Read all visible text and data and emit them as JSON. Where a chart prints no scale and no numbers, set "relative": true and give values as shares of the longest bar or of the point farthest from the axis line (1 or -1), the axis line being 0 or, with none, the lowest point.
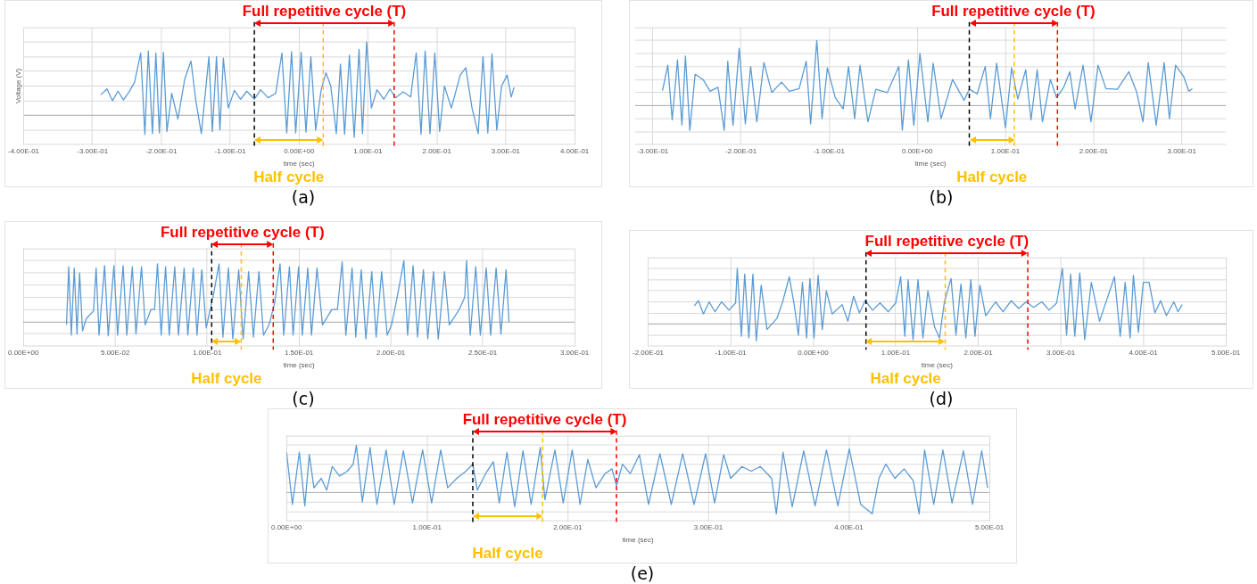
{
  "chart_data": [
    {
      "type": "line",
      "title": "(a)",
      "xlabel": "time (sec)",
      "ylabel": "Voltage (V)",
      "relative": true,
      "grid": true,
      "tick_labels": "x",
      "annotations": [
        "Full repetitive cycle (T)",
        "Half cycle"
      ],
      "ref_lines": [
        {
          "axis": "x",
          "value": -0.065,
          "color": "#000000",
          "line_style": "dashed"
        },
        {
          "axis": "x",
          "value": 0.035,
          "color": "#ffc000",
          "line_style": "dashed"
        },
        {
          "axis": "x",
          "value": 0.138,
          "color": "#ff0000",
          "line_style": "dashed"
        }
      ],
      "xlim": [
        -0.4,
        0.4
      ],
      "xticks": [
        {
          "value": -0.4,
          "label": "-4.00E-01"
        },
        {
          "value": -0.3,
          "label": "-3.00E-01"
        },
        {
          "value": -0.2,
          "label": "-2.00E-01"
        },
        {
          "value": -0.1,
          "label": "-1.00E-01"
        },
        {
          "value": 0,
          "label": "0.00E+00"
        },
        {
          "value": 0.1,
          "label": "1.00E-01"
        },
        {
          "value": 0.2,
          "label": "2.00E-01"
        },
        {
          "value": 0.3,
          "label": "3.00E-01"
        },
        {
          "value": 0.4,
          "label": "4.00E-01"
        }
      ],
      "x": [
        -0.288,
        -0.279,
        -0.271,
        -0.263,
        -0.255,
        -0.247,
        -0.239,
        -0.23,
        -0.224,
        -0.219,
        -0.213,
        -0.208,
        -0.203,
        -0.197,
        -0.192,
        -0.185,
        -0.176,
        -0.166,
        -0.157,
        -0.15,
        -0.142,
        -0.131,
        -0.126,
        -0.12,
        -0.115,
        -0.11,
        -0.103,
        -0.094,
        -0.085,
        -0.076,
        -0.065,
        -0.056,
        -0.045,
        -0.034,
        -0.025,
        -0.018,
        -0.011,
        -0.005,
        0.003,
        0.01,
        0.017,
        0.024,
        0.032,
        0.039,
        0.046,
        0.054,
        0.06,
        0.066,
        0.073,
        0.08,
        0.087,
        0.092,
        0.098,
        0.105,
        0.113,
        0.123,
        0.132,
        0.14,
        0.151,
        0.162,
        0.17,
        0.177,
        0.183,
        0.19,
        0.197,
        0.204,
        0.211,
        0.221,
        0.234,
        0.242,
        0.251,
        0.26,
        0.267,
        0.274,
        0.28,
        0.287,
        0.294,
        0.302,
        0.308,
        0.312
      ],
      "series": [
        {
          "color": "#5b9bd5",
          "values": [
            0.28,
            0.36,
            0.2,
            0.33,
            0.21,
            0.32,
            0.45,
            0.85,
            -0.26,
            0.88,
            -0.25,
            0.85,
            -0.24,
            0.86,
            -0.22,
            0.3,
            -0.05,
            0.5,
            0.74,
            0.2,
            -0.25,
            0.8,
            -0.22,
            0.8,
            -0.2,
            0.78,
            0.1,
            0.34,
            0.22,
            0.33,
            0.22,
            0.35,
            0.24,
            0.3,
            0.85,
            -0.24,
            0.87,
            -0.24,
            0.86,
            -0.23,
            0.8,
            -0.2,
            0.35,
            0.58,
            0.4,
            -0.25,
            0.7,
            -0.26,
            0.82,
            -0.3,
            0.9,
            -0.25,
            1.0,
            0.1,
            0.35,
            0.22,
            0.36,
            0.24,
            0.32,
            0.25,
            0.85,
            -0.26,
            0.88,
            -0.25,
            0.85,
            -0.22,
            0.4,
            0.1,
            0.55,
            0.65,
            0.1,
            -0.25,
            0.8,
            -0.24,
            0.84,
            -0.2,
            0.4,
            0.55,
            0.25,
            0.38
          ]
        }
      ]
    },
    {
      "type": "line",
      "title": "(b)",
      "xlabel": "time (sec)",
      "relative": true,
      "grid": true,
      "tick_labels": "x",
      "annotations": [
        "Full repetitive cycle (T)",
        "Half cycle"
      ],
      "ref_lines": [
        {
          "axis": "x",
          "value": 0.059,
          "color": "#000000",
          "line_style": "dashed"
        },
        {
          "axis": "x",
          "value": 0.11,
          "color": "#ffc000",
          "line_style": "dashed"
        },
        {
          "axis": "x",
          "value": 0.159,
          "color": "#ff0000",
          "line_style": "dashed"
        }
      ],
      "xlim": [
        -0.32,
        0.35
      ],
      "xticks": [
        {
          "value": -0.3,
          "label": "-3.00E-01"
        },
        {
          "value": -0.2,
          "label": "-2.00E-01"
        },
        {
          "value": -0.1,
          "label": "-1.00E-01"
        },
        {
          "value": 0,
          "label": "0.00E+00"
        },
        {
          "value": 0.1,
          "label": "1.00E-01"
        },
        {
          "value": 0.2,
          "label": "2.00E-01"
        },
        {
          "value": 0.3,
          "label": "3.00E-01"
        }
      ],
      "x": [
        -0.289,
        -0.283,
        -0.278,
        -0.272,
        -0.267,
        -0.263,
        -0.258,
        -0.252,
        -0.243,
        -0.235,
        -0.226,
        -0.219,
        -0.215,
        -0.209,
        -0.202,
        -0.195,
        -0.189,
        -0.182,
        -0.174,
        -0.165,
        -0.154,
        -0.145,
        -0.134,
        -0.126,
        -0.121,
        -0.114,
        -0.108,
        -0.102,
        -0.093,
        -0.084,
        -0.078,
        -0.071,
        -0.065,
        -0.056,
        -0.047,
        -0.034,
        -0.021,
        -0.017,
        -0.01,
        -0.004,
        0.003,
        0.012,
        0.018,
        0.027,
        0.04,
        0.053,
        0.059,
        0.068,
        0.077,
        0.083,
        0.09,
        0.1,
        0.107,
        0.114,
        0.123,
        0.129,
        0.136,
        0.142,
        0.151,
        0.158,
        0.166,
        0.173,
        0.179,
        0.188,
        0.197,
        0.205,
        0.214,
        0.227,
        0.24,
        0.249,
        0.256,
        0.262,
        0.271,
        0.28,
        0.286,
        0.293,
        0.302,
        0.308,
        0.312
      ],
      "series": [
        {
          "color": "#5b9bd5",
          "values": [
            0.23,
            0.62,
            -0.22,
            0.7,
            -0.3,
            0.76,
            -0.38,
            0.48,
            0.4,
            0.22,
            0.28,
            -0.38,
            0.68,
            -0.3,
            0.88,
            -0.28,
            0.6,
            -0.25,
            0.66,
            0.2,
            0.36,
            0.22,
            0.26,
            0.68,
            -0.28,
            1.0,
            -0.2,
            0.58,
            0.12,
            -0.05,
            0.6,
            -0.2,
            0.62,
            -0.25,
            0.25,
            0.2,
            0.6,
            -0.38,
            0.7,
            -0.3,
            0.8,
            -0.25,
            0.65,
            -0.2,
            0.4,
            0.08,
            0.25,
            0.18,
            0.6,
            -0.2,
            0.65,
            -0.34,
            0.58,
            0.1,
            0.55,
            -0.22,
            0.55,
            -0.25,
            0.4,
            0.12,
            0.28,
            0.52,
            -0.05,
            0.62,
            -0.25,
            0.62,
            0.26,
            0.25,
            0.52,
            0.2,
            -0.25,
            0.66,
            -0.3,
            0.66,
            -0.2,
            0.62,
            0.45,
            0.22,
            0.26
          ]
        }
      ]
    },
    {
      "type": "line",
      "title": "(c)",
      "xlabel": "time (sec)",
      "relative": true,
      "grid": true,
      "tick_labels": "x",
      "annotations": [
        "Full repetitive cycle (T)",
        "Half cycle"
      ],
      "ref_lines": [
        {
          "axis": "x",
          "value": 0.1025,
          "color": "#000000",
          "line_style": "dashed"
        },
        {
          "axis": "x",
          "value": 0.1186,
          "color": "#ffc000",
          "line_style": "dashed"
        },
        {
          "axis": "x",
          "value": 0.136,
          "color": "#ff0000",
          "line_style": "dashed"
        }
      ],
      "xlim": [
        0,
        0.3
      ],
      "xticks": [
        {
          "value": 0,
          "label": "0.00E+00"
        },
        {
          "value": 0.05,
          "label": "5.00E-02"
        },
        {
          "value": 0.1,
          "label": "1.00E-01"
        },
        {
          "value": 0.15,
          "label": "1.50E-01"
        },
        {
          "value": 0.2,
          "label": "2.00E-01"
        },
        {
          "value": 0.25,
          "label": "2.50E-01"
        },
        {
          "value": 0.3,
          "label": "3.00E-01"
        }
      ],
      "x": [
        0.0235,
        0.0247,
        0.0261,
        0.0277,
        0.0292,
        0.0306,
        0.0322,
        0.0342,
        0.0382,
        0.0396,
        0.0412,
        0.0442,
        0.0462,
        0.0493,
        0.0513,
        0.0543,
        0.0563,
        0.0593,
        0.0613,
        0.0643,
        0.0663,
        0.0694,
        0.0714,
        0.073,
        0.075,
        0.0774,
        0.0794,
        0.0824,
        0.0844,
        0.0875,
        0.0895,
        0.0925,
        0.0945,
        0.0971,
        0.0995,
        0.1035,
        0.1065,
        0.1086,
        0.1116,
        0.114,
        0.1172,
        0.1196,
        0.1226,
        0.1252,
        0.1282,
        0.1307,
        0.1337,
        0.1367,
        0.1397,
        0.1417,
        0.1448,
        0.1468,
        0.1498,
        0.1518,
        0.1548,
        0.1568,
        0.1598,
        0.1628,
        0.1679,
        0.1709,
        0.1735,
        0.1755,
        0.1789,
        0.1809,
        0.1839,
        0.1864,
        0.1896,
        0.192,
        0.195,
        0.198,
        0.2004,
        0.2031,
        0.2071,
        0.2091,
        0.2121,
        0.2145,
        0.2177,
        0.2201,
        0.2232,
        0.2258,
        0.2292,
        0.2318,
        0.2372,
        0.2402,
        0.2412,
        0.2432,
        0.2462,
        0.2487,
        0.2519,
        0.2543,
        0.2573,
        0.2599,
        0.2627,
        0.2643
      ],
      "series": [
        {
          "color": "#5b9bd5",
          "values": [
            -0.05,
            0.9,
            -0.22,
            0.88,
            -0.2,
            0.8,
            -0.15,
            0.05,
            0.18,
            0.88,
            -0.22,
            0.92,
            -0.23,
            0.92,
            -0.22,
            0.92,
            -0.22,
            0.9,
            -0.2,
            0.9,
            -0.05,
            0.2,
            0.2,
            0.95,
            -0.22,
            0.9,
            -0.22,
            0.9,
            -0.22,
            0.88,
            -0.22,
            0.88,
            -0.22,
            0.85,
            -0.1,
            0.45,
            0.95,
            -0.25,
            0.88,
            -0.28,
            0.85,
            -0.28,
            0.82,
            -0.25,
            0.82,
            -0.22,
            -0.05,
            0.3,
            0.95,
            -0.22,
            0.9,
            -0.22,
            0.9,
            -0.22,
            0.88,
            -0.22,
            0.88,
            -0.05,
            0.2,
            0.2,
            0.98,
            -0.22,
            0.88,
            -0.25,
            0.85,
            -0.28,
            0.82,
            -0.25,
            0.82,
            -0.22,
            -0.05,
            0.35,
            1.0,
            -0.22,
            0.92,
            -0.25,
            0.85,
            -0.28,
            0.82,
            -0.28,
            0.82,
            -0.05,
            0.2,
            0.4,
            1.0,
            -0.22,
            0.9,
            -0.22,
            0.88,
            -0.22,
            0.88,
            -0.2,
            0.85,
            0.0
          ]
        }
      ]
    },
    {
      "type": "line",
      "title": "(d)",
      "xlabel": "time (sec)",
      "relative": true,
      "grid": true,
      "tick_labels": "x",
      "annotations": [
        "Full repetitive cycle (T)",
        "Half cycle"
      ],
      "ref_lines": [
        {
          "axis": "x",
          "value": 0.064,
          "color": "#000000",
          "line_style": "dashed"
        },
        {
          "axis": "x",
          "value": 0.16,
          "color": "#ffc000",
          "line_style": "dashed"
        },
        {
          "axis": "x",
          "value": 0.26,
          "color": "#ff0000",
          "line_style": "dashed"
        }
      ],
      "xlim": [
        -0.2,
        0.5
      ],
      "xticks": [
        {
          "value": -0.2,
          "label": "-2.00E-01"
        },
        {
          "value": -0.1,
          "label": "-1.00E-01"
        },
        {
          "value": 0,
          "label": "0.00E+00"
        },
        {
          "value": 0.1,
          "label": "1.00E-01"
        },
        {
          "value": 0.2,
          "label": "2.00E-01"
        },
        {
          "value": 0.3,
          "label": "3.00E-01"
        },
        {
          "value": 0.4,
          "label": "4.00E-01"
        },
        {
          "value": 0.5,
          "label": "5.00E-01"
        }
      ],
      "x": [
        -0.144,
        -0.139,
        -0.133,
        -0.126,
        -0.119,
        -0.111,
        -0.102,
        -0.094,
        -0.092,
        -0.087,
        -0.083,
        -0.078,
        -0.073,
        -0.069,
        -0.063,
        -0.056,
        -0.044,
        -0.037,
        -0.029,
        -0.023,
        -0.018,
        -0.013,
        -0.008,
        -0.004,
        0.001,
        0.006,
        0.011,
        0.016,
        0.023,
        0.035,
        0.042,
        0.049,
        0.056,
        0.063,
        0.072,
        0.081,
        0.091,
        0.1,
        0.106,
        0.111,
        0.115,
        0.121,
        0.127,
        0.133,
        0.139,
        0.147,
        0.153,
        0.159,
        0.167,
        0.173,
        0.179,
        0.185,
        0.191,
        0.196,
        0.202,
        0.209,
        0.221,
        0.23,
        0.24,
        0.249,
        0.258,
        0.267,
        0.277,
        0.286,
        0.295,
        0.302,
        0.307,
        0.312,
        0.317,
        0.323,
        0.329,
        0.337,
        0.347,
        0.356,
        0.365,
        0.372,
        0.378,
        0.384,
        0.388,
        0.394,
        0.4,
        0.407,
        0.414,
        0.421,
        0.428,
        0.437,
        0.442,
        0.447
      ],
      "series": [
        {
          "color": "#5b9bd5",
          "values": [
            0.33,
            0.42,
            0.18,
            0.4,
            0.22,
            0.4,
            0.25,
            0.38,
            1.0,
            -0.22,
            0.9,
            -0.25,
            0.9,
            -0.3,
            0.7,
            -0.1,
            0.1,
            0.4,
            0.85,
            0.35,
            -0.2,
            0.75,
            -0.25,
            0.82,
            -0.25,
            0.88,
            -0.1,
            0.6,
            0.18,
            0.35,
            0.05,
            0.5,
            0.2,
            0.42,
            0.25,
            0.38,
            0.22,
            0.38,
            0.85,
            -0.22,
            0.8,
            -0.28,
            0.8,
            -0.25,
            0.6,
            -0.05,
            -0.25,
            0.4,
            0.82,
            -0.2,
            0.72,
            -0.25,
            0.8,
            -0.22,
            0.7,
            0.15,
            0.4,
            0.22,
            0.42,
            0.28,
            0.4,
            0.3,
            0.4,
            0.25,
            0.38,
            1.0,
            -0.2,
            0.9,
            -0.22,
            0.92,
            -0.28,
            0.75,
            0.05,
            0.45,
            0.85,
            -0.22,
            0.75,
            -0.25,
            0.88,
            -0.15,
            0.75,
            0.75,
            0.2,
            0.42,
            0.15,
            0.4,
            0.22,
            0.35
          ]
        }
      ]
    },
    {
      "type": "line",
      "title": "(e)",
      "xlabel": "time (sec)",
      "relative": true,
      "grid": true,
      "tick_labels": "x",
      "annotations": [
        "Full repetitive cycle (T)",
        "Half cycle"
      ],
      "ref_lines": [
        {
          "axis": "x",
          "value": 0.1325,
          "color": "#000000",
          "line_style": "dashed"
        },
        {
          "axis": "x",
          "value": 0.1821,
          "color": "#ffc000",
          "line_style": "dashed"
        },
        {
          "axis": "x",
          "value": 0.2347,
          "color": "#ff0000",
          "line_style": "dashed"
        }
      ],
      "xlim": [
        0,
        0.5
      ],
      "xticks": [
        {
          "value": 0,
          "label": "0.00E+00"
        },
        {
          "value": 0.1,
          "label": "1.00E-01"
        },
        {
          "value": 0.2,
          "label": "2.00E-01"
        },
        {
          "value": 0.3,
          "label": "3.00E-01"
        },
        {
          "value": 0.4,
          "label": "4.00E-01"
        },
        {
          "value": 0.5,
          "label": "5.00E-01"
        }
      ],
      "x": [
        0.0,
        0.0042,
        0.0091,
        0.013,
        0.0162,
        0.0195,
        0.0247,
        0.0286,
        0.0325,
        0.0377,
        0.0432,
        0.0474,
        0.0497,
        0.0539,
        0.0594,
        0.0643,
        0.0708,
        0.0766,
        0.0831,
        0.0896,
        0.0968,
        0.1032,
        0.1097,
        0.1146,
        0.1211,
        0.1276,
        0.1325,
        0.1357,
        0.1416,
        0.1471,
        0.1513,
        0.1568,
        0.1623,
        0.1682,
        0.174,
        0.1805,
        0.1838,
        0.1909,
        0.1968,
        0.2032,
        0.2088,
        0.2143,
        0.2201,
        0.2266,
        0.2315,
        0.2347,
        0.239,
        0.2445,
        0.251,
        0.2575,
        0.2656,
        0.2737,
        0.2818,
        0.2899,
        0.2981,
        0.3045,
        0.311,
        0.3159,
        0.324,
        0.3305,
        0.337,
        0.3451,
        0.3484,
        0.3532,
        0.3597,
        0.3679,
        0.376,
        0.3841,
        0.3922,
        0.4003,
        0.4084,
        0.4166,
        0.4214,
        0.4263,
        0.4328,
        0.4393,
        0.4458,
        0.45,
        0.4539,
        0.4604,
        0.4669,
        0.4734,
        0.4815,
        0.488,
        0.4945,
        0.4987
      ],
      "series": [
        {
          "color": "#5b9bd5",
          "values": [
            0.85,
            -0.25,
            0.85,
            -0.28,
            0.8,
            0.1,
            0.3,
            0.05,
            0.55,
            0.35,
            0.45,
            0.6,
            1.0,
            -0.2,
            0.95,
            -0.25,
            0.9,
            -0.25,
            0.88,
            -0.22,
            0.9,
            -0.22,
            0.9,
            0.1,
            0.3,
            0.45,
            0.6,
            0.05,
            0.4,
            0.65,
            -0.22,
            0.85,
            -0.3,
            0.88,
            -0.25,
            0.95,
            -0.15,
            0.9,
            -0.22,
            0.9,
            -0.25,
            0.7,
            0.1,
            0.4,
            0.5,
            0.15,
            0.6,
            0.4,
            0.8,
            -0.25,
            0.82,
            -0.25,
            0.82,
            -0.25,
            0.82,
            -0.22,
            0.8,
            0.3,
            0.55,
            0.45,
            0.55,
            0.3,
            -0.45,
            0.85,
            -0.3,
            0.88,
            -0.28,
            0.9,
            -0.28,
            0.92,
            -0.25,
            -0.45,
            0.3,
            0.6,
            0.3,
            0.5,
            0.25,
            -0.45,
            0.9,
            -0.25,
            0.9,
            -0.22,
            0.88,
            -0.25,
            0.88,
            0.1
          ]
        }
      ]
    }
  ]
}
